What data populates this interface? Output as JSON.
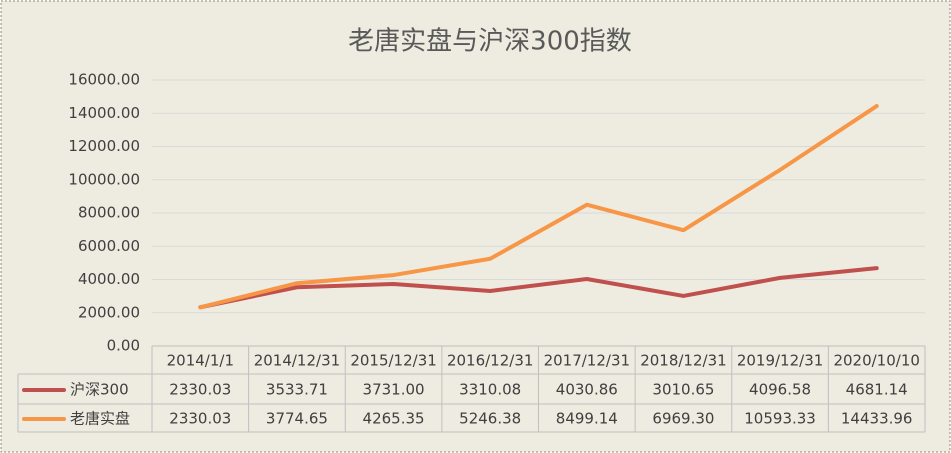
{
  "chart_data": {
    "type": "line",
    "title": "老唐实盘与沪深300指数",
    "categories": [
      "2014/1/1",
      "2014/12/31",
      "2015/12/31",
      "2016/12/31",
      "2017/12/31",
      "2018/12/31",
      "2019/12/31",
      "2020/10/10"
    ],
    "series": [
      {
        "name": "沪深300",
        "color": "#c0504d",
        "values": [
          2330.03,
          3533.71,
          3731,
          3310.08,
          4030.86,
          3010.65,
          4096.58,
          4681.14
        ],
        "value_labels": [
          "2330.03",
          "3533.71",
          "3731.00",
          "3310.08",
          "4030.86",
          "3010.65",
          "4096.58",
          "4681.14"
        ]
      },
      {
        "name": "老唐实盘",
        "color": "#f79646",
        "values": [
          2330.03,
          3774.65,
          4265.35,
          5246.38,
          8499.14,
          6969.3,
          10593.33,
          14433.96
        ],
        "value_labels": [
          "2330.03",
          "3774.65",
          "4265.35",
          "5246.38",
          "8499.14",
          "6969.30",
          "10593.33",
          "14433.96"
        ]
      }
    ],
    "ylim": [
      0,
      16000
    ],
    "yticks": [
      {
        "value": 0,
        "label": "0.00"
      },
      {
        "value": 2000,
        "label": "2000.00"
      },
      {
        "value": 4000,
        "label": "4000.00"
      },
      {
        "value": 6000,
        "label": "6000.00"
      },
      {
        "value": 8000,
        "label": "8000.00"
      },
      {
        "value": 10000,
        "label": "10000.00"
      },
      {
        "value": 12000,
        "label": "12000.00"
      },
      {
        "value": 14000,
        "label": "14000.00"
      },
      {
        "value": 16000,
        "label": "16000.00"
      }
    ],
    "grid": true
  }
}
